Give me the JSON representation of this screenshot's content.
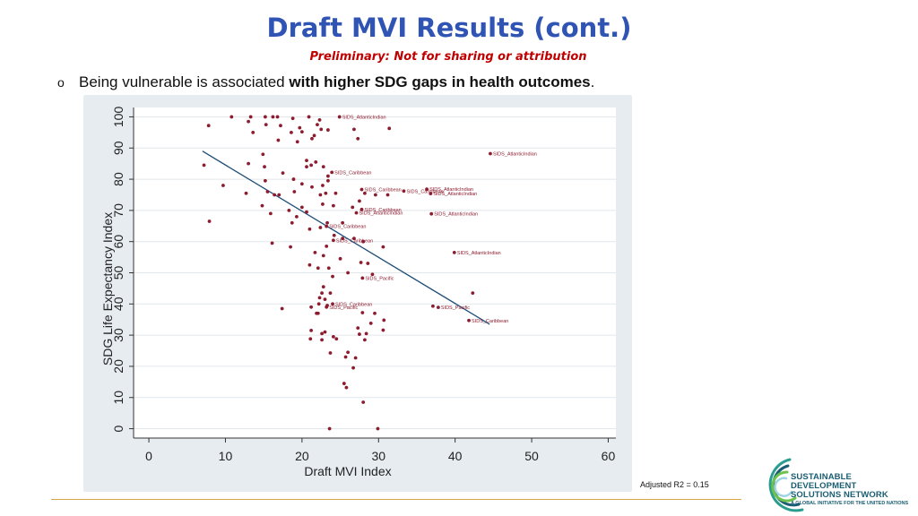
{
  "header": {
    "title": "Draft MVI Results (cont.)",
    "subtitle": "Preliminary: Not for sharing or attribution"
  },
  "bullet": {
    "marker": "o",
    "text_plain": "Being vulnerable is associated ",
    "text_bold": "with higher SDG gaps in health outcomes",
    "text_end": "."
  },
  "footnote": "Adjusted R2 = 0.15",
  "logo": {
    "line1": "SUSTAINABLE DEVELOPMENT",
    "line2": "SOLUTIONS NETWORK",
    "line3": "A GLOBAL INITIATIVE FOR THE UNITED NATIONS"
  },
  "colors": {
    "title": "#2f54b4",
    "subtitle": "#c00000",
    "point": "#8c1c2e",
    "fitline": "#1f4e79",
    "plot_bg": "#ffffff",
    "panel_bg": "#e6ecf0",
    "grid": "#e1e7eb"
  },
  "chart_data": {
    "type": "scatter",
    "title": "",
    "xlabel": "Draft MVI Index",
    "ylabel": "SDG Life Expectancy Index",
    "xlim": [
      -2,
      61
    ],
    "ylim": [
      -3,
      103
    ],
    "xticks": [
      0,
      10,
      20,
      30,
      40,
      50,
      60
    ],
    "yticks": [
      0,
      10,
      20,
      30,
      40,
      50,
      60,
      70,
      80,
      90,
      100
    ],
    "grid": true,
    "fit_line": {
      "x": [
        7,
        44.5
      ],
      "y": [
        89,
        33.5
      ]
    },
    "points": [
      [
        10.8,
        100
      ],
      [
        13.3,
        100
      ],
      [
        15.2,
        100
      ],
      [
        16.2,
        100
      ],
      [
        16.8,
        100
      ],
      [
        18.8,
        99.5
      ],
      [
        20.9,
        100
      ],
      [
        22.3,
        99
      ],
      [
        13.0,
        98.5
      ],
      [
        7.8,
        97.2
      ],
      [
        15.3,
        97.5
      ],
      [
        17.2,
        97.2
      ],
      [
        19.7,
        96.5
      ],
      [
        22.0,
        97.5
      ],
      [
        23.4,
        95.8
      ],
      [
        13.6,
        95
      ],
      [
        18.6,
        95
      ],
      [
        20.0,
        95.2
      ],
      [
        22.5,
        96
      ],
      [
        26.8,
        96
      ],
      [
        31.4,
        96.3
      ],
      [
        27.3,
        93
      ],
      [
        21.3,
        93
      ],
      [
        21.6,
        94
      ],
      [
        16.9,
        92.5
      ],
      [
        19.4,
        92
      ],
      [
        14.9,
        88
      ],
      [
        20.6,
        86
      ],
      [
        20.6,
        84
      ],
      [
        21.2,
        84.5
      ],
      [
        21.8,
        85.5
      ],
      [
        22.8,
        84
      ],
      [
        23.4,
        81
      ],
      [
        13.0,
        85
      ],
      [
        7.2,
        84.5
      ],
      [
        15.1,
        84
      ],
      [
        17.5,
        82
      ],
      [
        18.9,
        80
      ],
      [
        20.0,
        78.5
      ],
      [
        15.2,
        79.5
      ],
      [
        9.7,
        78
      ],
      [
        12.7,
        75.5
      ],
      [
        15.5,
        76
      ],
      [
        16.4,
        75
      ],
      [
        17.0,
        75
      ],
      [
        19.0,
        76
      ],
      [
        21.3,
        77.5
      ],
      [
        22.7,
        78
      ],
      [
        23.4,
        79.5
      ],
      [
        22.4,
        75
      ],
      [
        23.1,
        75.5
      ],
      [
        24.4,
        75.5
      ],
      [
        28.2,
        75.5
      ],
      [
        29.6,
        75
      ],
      [
        31.2,
        75
      ],
      [
        14.8,
        71.5
      ],
      [
        15.9,
        69
      ],
      [
        18.3,
        70
      ],
      [
        20.0,
        71
      ],
      [
        20.6,
        69.5
      ],
      [
        22.7,
        72
      ],
      [
        24.1,
        71.5
      ],
      [
        26.6,
        71
      ],
      [
        27.5,
        73
      ],
      [
        23.3,
        66
      ],
      [
        25.3,
        66
      ],
      [
        19.3,
        68
      ],
      [
        18.7,
        66
      ],
      [
        7.9,
        66.5
      ],
      [
        21.0,
        64
      ],
      [
        22.4,
        64.5
      ],
      [
        24.2,
        62
      ],
      [
        25.3,
        61
      ],
      [
        26.8,
        61
      ],
      [
        28.0,
        60
      ],
      [
        16.1,
        59.5
      ],
      [
        18.5,
        58.3
      ],
      [
        23.2,
        58.5
      ],
      [
        30.6,
        58.3
      ],
      [
        21.7,
        56.5
      ],
      [
        22.8,
        55.5
      ],
      [
        25.0,
        54.5
      ],
      [
        27.7,
        53.3
      ],
      [
        28.6,
        53
      ],
      [
        21.0,
        52.5
      ],
      [
        22.1,
        51.5
      ],
      [
        23.5,
        51.5
      ],
      [
        26.0,
        50
      ],
      [
        29.2,
        49.5
      ],
      [
        24.0,
        48.8
      ],
      [
        22.8,
        45.5
      ],
      [
        22.6,
        43.5
      ],
      [
        23.7,
        43.5
      ],
      [
        22.3,
        42
      ],
      [
        23.0,
        41.5
      ],
      [
        22.2,
        40
      ],
      [
        21.2,
        39
      ],
      [
        22.1,
        37
      ],
      [
        23.3,
        39.5
      ],
      [
        17.4,
        38.5
      ],
      [
        42.3,
        43.5
      ],
      [
        37.1,
        39.3
      ],
      [
        21.9,
        37
      ],
      [
        27.9,
        37.2
      ],
      [
        29.5,
        37
      ],
      [
        30.7,
        34.8
      ],
      [
        29.0,
        33.8
      ],
      [
        27.3,
        32.3
      ],
      [
        30.6,
        31.6
      ],
      [
        21.2,
        31.5
      ],
      [
        22.6,
        30.5
      ],
      [
        23.0,
        31
      ],
      [
        27.5,
        30.3
      ],
      [
        28.4,
        30.5
      ],
      [
        21.1,
        28.8
      ],
      [
        22.6,
        28.5
      ],
      [
        24.1,
        29.5
      ],
      [
        24.5,
        28.8
      ],
      [
        28.2,
        28.5
      ],
      [
        26.0,
        24.5
      ],
      [
        23.7,
        24.3
      ],
      [
        25.7,
        23
      ],
      [
        27.0,
        22.7
      ],
      [
        26.7,
        19.5
      ],
      [
        25.5,
        14.5
      ],
      [
        25.8,
        13.2
      ],
      [
        28.0,
        8.5
      ],
      [
        23.6,
        0
      ],
      [
        29.9,
        0
      ]
    ],
    "labeled_points": [
      {
        "x": 24.9,
        "y": 100,
        "label": "SIDS_AtlanticIndian"
      },
      {
        "x": 44.6,
        "y": 88.2,
        "label": "SIDS_AtlanticIndian"
      },
      {
        "x": 23.9,
        "y": 82.2,
        "label": "SIDS_Caribbean"
      },
      {
        "x": 27.8,
        "y": 76.7,
        "label": "SIDS_Caribbean"
      },
      {
        "x": 33.3,
        "y": 76.2,
        "label": "SIDS_Caribbean"
      },
      {
        "x": 36.3,
        "y": 76.8,
        "label": "SIDS_AtlanticIndian"
      },
      {
        "x": 36.8,
        "y": 75.4,
        "label": "SIDS_AtlanticIndian"
      },
      {
        "x": 27.8,
        "y": 70.3,
        "label": "SIDS_Caribbean"
      },
      {
        "x": 27.1,
        "y": 69.2,
        "label": "SIDS_AtlanticIndian"
      },
      {
        "x": 36.9,
        "y": 68.9,
        "label": "SIDS_AtlanticIndian"
      },
      {
        "x": 23.2,
        "y": 64.9,
        "label": "SIDS_Caribbean"
      },
      {
        "x": 24.1,
        "y": 60.4,
        "label": "SIDS_Caribbean"
      },
      {
        "x": 39.9,
        "y": 56.5,
        "label": "SIDS_AtlanticIndian"
      },
      {
        "x": 27.9,
        "y": 48.3,
        "label": "SIDS_Pacific"
      },
      {
        "x": 24.0,
        "y": 40.0,
        "label": "SIDS_Caribbean"
      },
      {
        "x": 23.2,
        "y": 39.0,
        "label": "SIDS_Pacific"
      },
      {
        "x": 37.8,
        "y": 38.9,
        "label": "SIDS_Pacific"
      },
      {
        "x": 41.8,
        "y": 34.7,
        "label": "SIDS_Caribbean"
      }
    ]
  }
}
